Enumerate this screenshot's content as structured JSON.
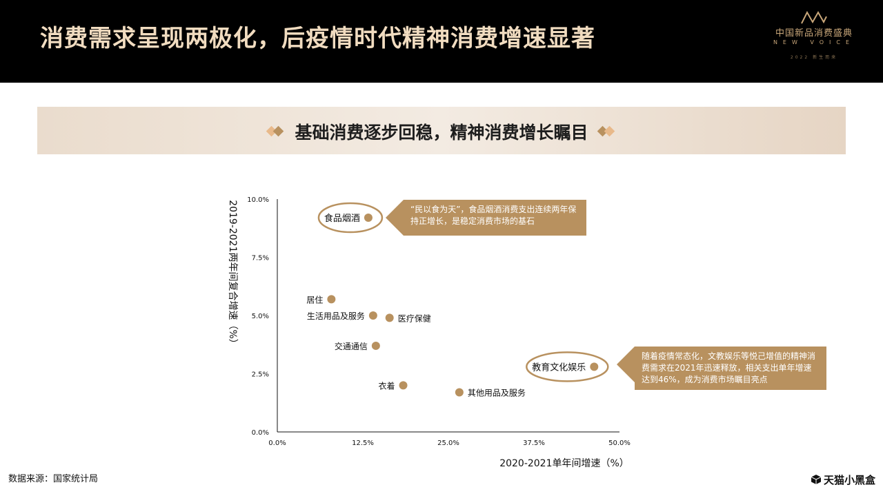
{
  "header": {
    "title": "消费需求呈现两极化，后疫情时代精神消费增速显著",
    "brand_cn": "中国新品消费盛典",
    "brand_en": "NEW VOICE",
    "brand_year": "2022 新生而来"
  },
  "banner": {
    "title": "基础消费逐步回稳，精神消费增长瞩目"
  },
  "callouts": {
    "top": "“民以食为天”，食品烟酒消费支出连续两年保持正增长，是稳定消费市场的基石",
    "bottom": "随着疫情常态化，文教娱乐等悦己增值的精神消费需求在2021年迅速释放，相关支出单年增速达到46%，成为消费市场瞩目亮点"
  },
  "footer": {
    "source": "数据来源：国家统计局",
    "brand": "天猫小黑盒"
  },
  "colors": {
    "accent": "#b8915f",
    "header_bg": "#000000",
    "title": "#f1dcc0",
    "point": "#b8915f"
  },
  "chart_data": {
    "type": "scatter",
    "xlabel": "2020-2021单年间增速（%）",
    "ylabel": "2019-2021两年间复合增速（%）",
    "xlim": [
      0,
      50
    ],
    "ylim": [
      0,
      10
    ],
    "xticks": [
      "0.0%",
      "12.5%",
      "25.0%",
      "37.5%",
      "50.0%"
    ],
    "yticks": [
      "0.0%",
      "2.5%",
      "5.0%",
      "7.5%",
      "10.0%"
    ],
    "grid": false,
    "points": [
      {
        "label": "食品烟酒",
        "x": 13.3,
        "y": 9.2,
        "label_side": "left",
        "highlight": true
      },
      {
        "label": "居住",
        "x": 7.9,
        "y": 5.7,
        "label_side": "left",
        "highlight": false
      },
      {
        "label": "生活用品及服务",
        "x": 14.0,
        "y": 5.0,
        "label_side": "left",
        "highlight": false
      },
      {
        "label": "医疗保健",
        "x": 16.4,
        "y": 4.9,
        "label_side": "right",
        "highlight": false
      },
      {
        "label": "交通通信",
        "x": 14.4,
        "y": 3.7,
        "label_side": "left",
        "highlight": false
      },
      {
        "label": "教育文化娱乐",
        "x": 46.3,
        "y": 2.8,
        "label_side": "left",
        "highlight": true
      },
      {
        "label": "衣着",
        "x": 18.4,
        "y": 2.0,
        "label_side": "left",
        "highlight": false
      },
      {
        "label": "其他用品及服务",
        "x": 26.6,
        "y": 1.7,
        "label_side": "right",
        "highlight": false
      }
    ]
  }
}
